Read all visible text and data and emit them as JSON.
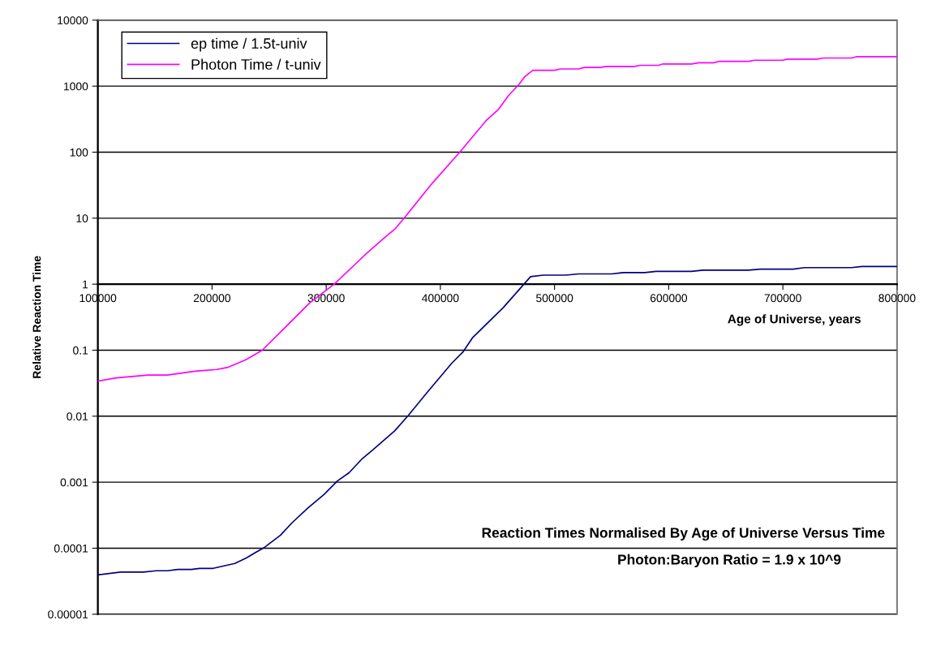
{
  "chart_data": {
    "type": "line",
    "title": "Reaction Times Normalised By Age of Universe Versus Time",
    "subtitle": "Photon:Baryon Ratio = 1.9 x 10^9",
    "xlabel": "Age of Universe, years",
    "ylabel": "Relative Reaction Time",
    "log": "y",
    "grid": "y",
    "legend": "top left",
    "marker": "none",
    "line_style": "solid",
    "xlim": [
      100000,
      800000
    ],
    "xticks": [
      100000,
      200000,
      300000,
      400000,
      500000,
      600000,
      700000,
      800000
    ],
    "ylim": [
      1e-05,
      10000
    ],
    "yticks": [
      {
        "value": 1e-05,
        "label": "0.00001"
      },
      {
        "value": 0.0001,
        "label": "0.0001"
      },
      {
        "value": 0.001,
        "label": "0.001"
      },
      {
        "value": 0.01,
        "label": "0.01"
      },
      {
        "value": 0.1,
        "label": "0.1"
      },
      {
        "value": 1,
        "label": "1"
      },
      {
        "value": 10,
        "label": "10"
      },
      {
        "value": 100,
        "label": "100"
      },
      {
        "value": 1000,
        "label": "1000"
      },
      {
        "value": 10000,
        "label": "10000"
      }
    ],
    "series": [
      {
        "name": "ep time / 1.5t-univ",
        "color": "#000080",
        "x": [
          100000,
          120000,
          140000,
          151000,
          161000,
          170000,
          182000,
          189000,
          201000,
          220000,
          230000,
          239000,
          246000,
          260000,
          270000,
          284000,
          298000,
          310000,
          320000,
          331000,
          341000,
          360000,
          372000,
          388000,
          410000,
          420000,
          428000,
          455000,
          479000,
          490000,
          510000,
          521000,
          550000,
          560000,
          579000,
          589000,
          620000,
          630000,
          670000,
          680000,
          709000,
          719000,
          760000,
          769000,
          800000
        ],
        "values": [
          3.95e-05,
          4.34e-05,
          4.34e-05,
          4.55e-05,
          4.55e-05,
          4.77e-05,
          4.77e-05,
          4.95e-05,
          4.95e-05,
          5.87e-05,
          7.1e-05,
          8.8e-05,
          0.000103,
          0.000158,
          0.000242,
          0.000407,
          0.00065,
          0.00105,
          0.00139,
          0.00222,
          0.0031,
          0.006,
          0.0103,
          0.0225,
          0.0636,
          0.095,
          0.153,
          0.44,
          1.3,
          1.37,
          1.37,
          1.43,
          1.43,
          1.5,
          1.5,
          1.56,
          1.56,
          1.63,
          1.63,
          1.69,
          1.69,
          1.78,
          1.78,
          1.85,
          1.85
        ]
      },
      {
        "name": "Photon Time / t-univ",
        "color": "#ff00ff",
        "x": [
          100000,
          116000,
          144000,
          161000,
          185000,
          204000,
          214000,
          230000,
          244000,
          265000,
          286000,
          307000,
          329000,
          335000,
          349000,
          360000,
          369000,
          393000,
          417000,
          440000,
          451000,
          460000,
          469000,
          474000,
          481000,
          500000,
          505000,
          521000,
          526000,
          540000,
          545000,
          570000,
          575000,
          591000,
          595000,
          620000,
          626000,
          639000,
          644000,
          670000,
          675000,
          700000,
          704000,
          730000,
          735000,
          760000,
          765000,
          800000
        ],
        "values": [
          0.034,
          0.038,
          0.042,
          0.042,
          0.048,
          0.051,
          0.055,
          0.072,
          0.1,
          0.23,
          0.53,
          1.0,
          2.3,
          2.9,
          4.7,
          6.8,
          10.4,
          34,
          100,
          300,
          447,
          730,
          1070,
          1400,
          1740,
          1740,
          1820,
          1820,
          1920,
          1920,
          1990,
          1990,
          2070,
          2070,
          2170,
          2170,
          2260,
          2260,
          2370,
          2370,
          2470,
          2470,
          2570,
          2570,
          2670,
          2670,
          2800,
          2800
        ]
      }
    ]
  }
}
